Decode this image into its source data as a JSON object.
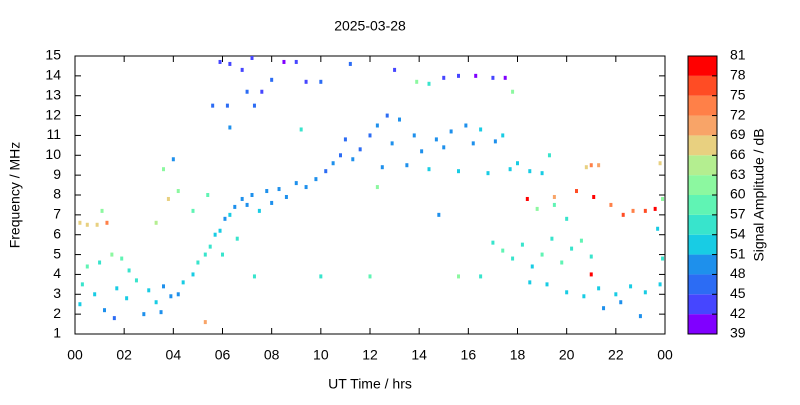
{
  "chart_data": {
    "type": "scatter",
    "title": "2025-03-28",
    "x_label": "UT Time / hrs",
    "y_label": "Frequency / MHz",
    "xlim": [
      0,
      24
    ],
    "xticks": [
      {
        "value": 0,
        "label": "00"
      },
      {
        "value": 2,
        "label": "02"
      },
      {
        "value": 4,
        "label": "04"
      },
      {
        "value": 6,
        "label": "06"
      },
      {
        "value": 8,
        "label": "08"
      },
      10,
      12,
      14,
      16,
      18,
      20,
      22,
      {
        "value": 24,
        "label": "00"
      }
    ],
    "ylim": [
      1,
      15
    ],
    "yticks": [
      1,
      2,
      3,
      4,
      5,
      6,
      7,
      8,
      9,
      10,
      11,
      12,
      13,
      14,
      15
    ],
    "colorbar": {
      "label": "Signal Amplitude / dB",
      "ticks": [
        39,
        42,
        45,
        48,
        51,
        54,
        57,
        60,
        63,
        66,
        69,
        72,
        75,
        78,
        81
      ],
      "colors": [
        "#8000ff",
        "#4646ff",
        "#2c6cf4",
        "#1e90ec",
        "#18cce4",
        "#38e4cc",
        "#60f4b4",
        "#8cf8a0",
        "#b4ee90",
        "#e8d080",
        "#f8a468",
        "#ff8048",
        "#ff4c24",
        "#ff0000"
      ]
    },
    "x": [
      0.2,
      0.3,
      0.5,
      0.8,
      1,
      1.2,
      1.5,
      1.7,
      1.9,
      2.1,
      2.2,
      2.5,
      2.8,
      3,
      3.3,
      3.6,
      3.9,
      4.2,
      4.4,
      0.2,
      0.5,
      0.9,
      1.3,
      1.1,
      4.8,
      5.0,
      5.3,
      5.5,
      5.7,
      5.9,
      6.0,
      6.1,
      6.3,
      6.5,
      6.6,
      6.8,
      7.0,
      7.2,
      7.5,
      7.8,
      8.0,
      8.3,
      8.6,
      9,
      9.4,
      9.8,
      10.2,
      10.5,
      10.8,
      11.0,
      11.3,
      11.6,
      12,
      12.3,
      12.5,
      12.7,
      12.9,
      13.2,
      13.5,
      13.8,
      14.1,
      14.4,
      14.7,
      15.0,
      15.3,
      15.6,
      15.9,
      16.2,
      16.5,
      16.8,
      17.1,
      17.4,
      17.7,
      18.0,
      18.5,
      19,
      19.3,
      5.9,
      6.3,
      6.8,
      7.0,
      7.2,
      7.6,
      8,
      8.5,
      9,
      9.4,
      10,
      11.2,
      13,
      13.9,
      14.4,
      15,
      15.6,
      16.3,
      17,
      17.5,
      17.8,
      5.6,
      6.2,
      6.3,
      7.3,
      17.0,
      17.4,
      17.8,
      18.2,
      18.6,
      19,
      19.4,
      19.8,
      20.2,
      20.6,
      21,
      20,
      19.5,
      18.8,
      18.5,
      19.2,
      20.0,
      20.7,
      21.3,
      22,
      22.6,
      23.2,
      23.8,
      21.5,
      22.2,
      23.0,
      18.4,
      19.5,
      20.4,
      21.1,
      21.8,
      22.3,
      22.7,
      23.2,
      23.6,
      21.0,
      20.8,
      21.3,
      23.8,
      23.9,
      23.7,
      23.9,
      21.0,
      3.6,
      4.0,
      4.2,
      3.8,
      4.8,
      5.4,
      3.3,
      9.2,
      5.3,
      12.3,
      14.8,
      7.3,
      10,
      12,
      15.6,
      16.5,
      3.5,
      1.6
    ],
    "y": [
      2.5,
      3.5,
      4.4,
      3.0,
      4.6,
      2.2,
      5.0,
      3.3,
      4.8,
      2.8,
      4.2,
      3.7,
      2.0,
      3.2,
      2.6,
      3.4,
      2.9,
      3.0,
      3.6,
      6.6,
      6.5,
      6.5,
      6.6,
      7.2,
      4.0,
      4.6,
      5.0,
      5.4,
      6.0,
      6.2,
      5.0,
      6.8,
      7.0,
      7.4,
      5.8,
      7.8,
      7.5,
      8.0,
      7.2,
      8.2,
      7.6,
      8.3,
      7.9,
      8.6,
      8.4,
      8.8,
      9.2,
      9.6,
      10.0,
      10.8,
      9.8,
      10.3,
      11.0,
      11.5,
      9.4,
      12.0,
      10.6,
      11.8,
      9.5,
      11.0,
      10.2,
      9.3,
      10.8,
      10.4,
      11.2,
      9.2,
      11.5,
      10.6,
      11.3,
      9.1,
      10.7,
      11.0,
      9.3,
      9.6,
      9.2,
      9.1,
      10.0,
      14.7,
      14.6,
      14.3,
      13.2,
      14.9,
      13.2,
      13.8,
      14.7,
      14.7,
      13.7,
      13.7,
      14.6,
      14.3,
      13.7,
      13.6,
      13.9,
      14.0,
      14.0,
      13.9,
      13.9,
      13.2,
      12.5,
      12.5,
      11.4,
      12.5,
      5.6,
      5.2,
      4.8,
      5.5,
      4.4,
      5.0,
      5.8,
      4.6,
      5.3,
      5.7,
      4.9,
      6.8,
      7.5,
      7.3,
      3.6,
      3.5,
      3.1,
      2.9,
      3.3,
      3.0,
      3.4,
      3.1,
      3.5,
      2.3,
      2.6,
      1.9,
      7.8,
      7.9,
      8.2,
      7.9,
      7.5,
      7.0,
      7.2,
      7.2,
      7.3,
      9.5,
      9.4,
      9.5,
      9.6,
      7.8,
      6.3,
      4.8,
      4.0,
      9.3,
      9.8,
      8.2,
      7.8,
      7.2,
      8.0,
      6.6,
      11.3,
      1.6,
      8.4,
      7.0,
      3.9,
      3.9,
      3.9,
      3.9,
      3.9,
      2.1,
      1.8
    ],
    "amplitude": [
      52,
      54,
      57,
      51,
      55,
      50,
      60,
      53,
      58,
      51,
      56,
      54,
      50,
      52,
      51,
      50,
      49,
      50,
      51,
      66,
      68,
      67,
      72,
      60,
      53,
      55,
      56,
      54,
      53,
      52,
      55,
      50,
      51,
      50,
      54,
      49,
      50,
      49,
      51,
      48,
      50,
      49,
      50,
      48,
      49,
      48,
      47,
      48,
      47,
      47,
      48,
      47,
      47,
      48,
      49,
      47,
      48,
      48,
      50,
      49,
      48,
      51,
      49,
      48,
      50,
      52,
      49,
      50,
      51,
      52,
      50,
      51,
      52,
      53,
      51,
      52,
      54,
      43,
      42,
      44,
      45,
      42,
      43,
      45,
      41,
      42,
      44,
      45,
      46,
      44,
      62,
      55,
      42,
      42,
      41,
      43,
      41,
      60,
      46,
      47,
      48,
      47,
      55,
      57,
      54,
      56,
      53,
      58,
      55,
      57,
      56,
      58,
      55,
      56,
      58,
      60,
      53,
      52,
      51,
      52,
      53,
      51,
      52,
      51,
      53,
      50,
      49,
      50,
      78,
      70,
      75,
      78,
      72,
      75,
      73,
      76,
      78,
      72,
      66,
      69,
      66,
      60,
      52,
      56,
      78,
      60,
      48,
      62,
      66,
      59,
      58,
      63,
      55,
      69,
      60,
      50,
      56,
      55,
      57,
      60,
      54,
      48,
      46
    ]
  }
}
